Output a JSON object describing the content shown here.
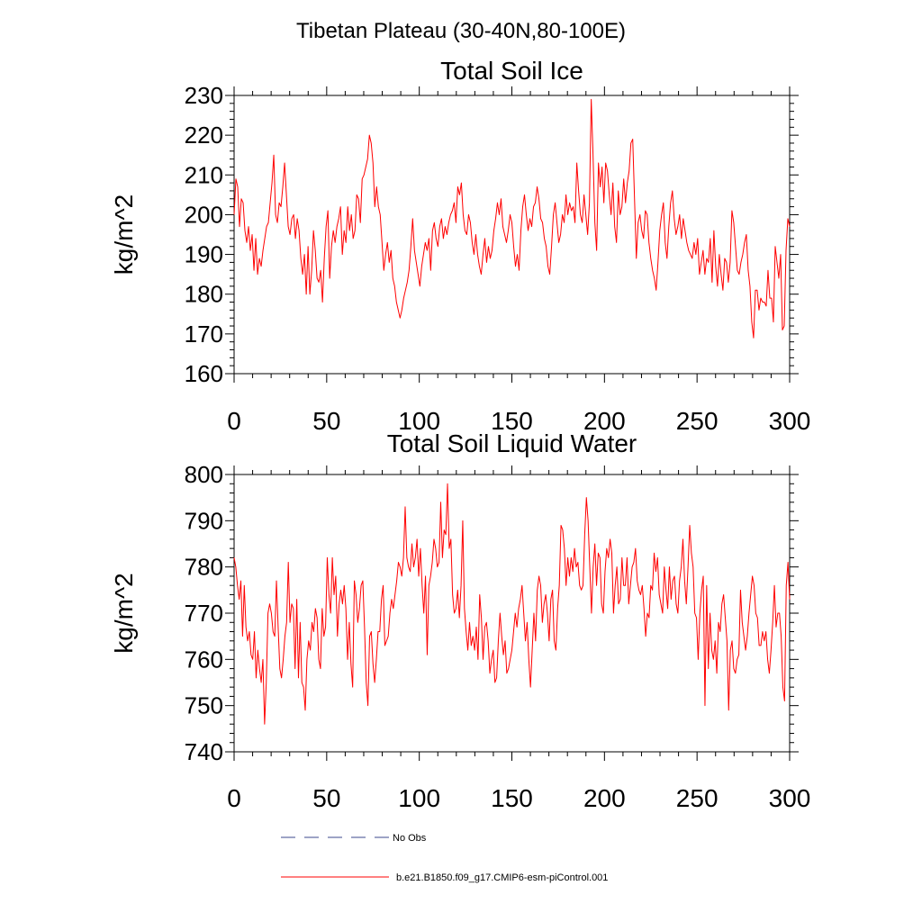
{
  "figure_title": "Tibetan Plateau (30-40N,80-100E)",
  "colors": {
    "model_line": "#ff0000",
    "obs_line": "#3b4a8c",
    "axis": "#000000"
  },
  "legend": [
    {
      "label": "No Obs",
      "style": "dashed",
      "color": "#3b4a8c"
    },
    {
      "label": "b.e21.B1850.f09_g17.CMIP6-esm-piControl.001",
      "style": "solid",
      "color": "#ff0000"
    }
  ],
  "chart_data": [
    {
      "type": "line",
      "title": "Total Soil Ice",
      "xlabel": "",
      "ylabel": "kg/m^2",
      "xlim": [
        0,
        300
      ],
      "ylim": [
        160,
        230
      ],
      "xticks": [
        0,
        50,
        100,
        150,
        200,
        250,
        300
      ],
      "xtick_labels": [
        "0",
        "50",
        "100",
        "150",
        "200",
        "250",
        "300"
      ],
      "yticks": [
        160,
        170,
        180,
        190,
        200,
        210,
        220,
        230
      ],
      "ytick_labels": [
        "160",
        "170",
        "180",
        "190",
        "200",
        "210",
        "220",
        "230"
      ],
      "series": [
        {
          "name": "b.e21.B1850.f09_g17.CMIP6-esm-piControl.001",
          "color": "#ff0000",
          "values": [
            200,
            209,
            207,
            197,
            204,
            203,
            196,
            193,
            197,
            191,
            195,
            186,
            194,
            185,
            189,
            187,
            191,
            194,
            197,
            198,
            203,
            208,
            215,
            200,
            198,
            203,
            202,
            207,
            213,
            205,
            197,
            195,
            199,
            200,
            194,
            199,
            196,
            189,
            185,
            190,
            180,
            192,
            180,
            186,
            196,
            191,
            184,
            183,
            186,
            178,
            189,
            197,
            201,
            184,
            192,
            196,
            193,
            197,
            199,
            202,
            190,
            196,
            193,
            202,
            196,
            200,
            194,
            196,
            205,
            204,
            198,
            209,
            210,
            212,
            214,
            220,
            218,
            213,
            202,
            207,
            202,
            200,
            193,
            186,
            190,
            193,
            188,
            191,
            184,
            182,
            178,
            176,
            174,
            176,
            179,
            181,
            183,
            186,
            192,
            199,
            191,
            188,
            185,
            182,
            187,
            190,
            193,
            191,
            194,
            186,
            196,
            198,
            194,
            192,
            197,
            199,
            194,
            197,
            195,
            198,
            200,
            201,
            203,
            198,
            207,
            205,
            208,
            200,
            196,
            195,
            200,
            198,
            193,
            190,
            195,
            190,
            187,
            185,
            190,
            194,
            188,
            192,
            189,
            191,
            196,
            199,
            203,
            200,
            204,
            197,
            195,
            193,
            196,
            200,
            198,
            192,
            187,
            190,
            186,
            196,
            202,
            205,
            200,
            196,
            199,
            197,
            202,
            203,
            207,
            204,
            199,
            198,
            194,
            192,
            187,
            185,
            192,
            200,
            203,
            198,
            193,
            195,
            200,
            198,
            205,
            200,
            203,
            201,
            202,
            198,
            213,
            206,
            200,
            198,
            205,
            200,
            195,
            203,
            229,
            215,
            198,
            191,
            213,
            207,
            212,
            203,
            213,
            211,
            205,
            200,
            208,
            197,
            193,
            206,
            200,
            202,
            209,
            203,
            208,
            211,
            218,
            219,
            204,
            189,
            198,
            200,
            196,
            194,
            201,
            200,
            193,
            189,
            186,
            184,
            181,
            188,
            196,
            200,
            203,
            193,
            189,
            197,
            203,
            206,
            199,
            195,
            197,
            200,
            194,
            199,
            196,
            193,
            191,
            190,
            189,
            193,
            190,
            194,
            185,
            188,
            191,
            185,
            189,
            188,
            194,
            183,
            196,
            187,
            182,
            190,
            185,
            181,
            189,
            188,
            183,
            188,
            201,
            198,
            192,
            186,
            185,
            188,
            190,
            193,
            195,
            186,
            182,
            173,
            169,
            181,
            181,
            176,
            179,
            178,
            178,
            177,
            186,
            179,
            179,
            173,
            192,
            188,
            184,
            190,
            171,
            172,
            191,
            199,
            197
          ]
        }
      ]
    },
    {
      "type": "line",
      "title": "Total Soil Liquid Water",
      "xlabel": "",
      "ylabel": "kg/m^2",
      "xlim": [
        0,
        300
      ],
      "ylim": [
        740,
        800
      ],
      "xticks": [
        0,
        50,
        100,
        150,
        200,
        250,
        300
      ],
      "xtick_labels": [
        "0",
        "50",
        "100",
        "150",
        "200",
        "250",
        "300"
      ],
      "yticks": [
        740,
        750,
        760,
        770,
        780,
        790,
        800
      ],
      "ytick_labels": [
        "740",
        "750",
        "760",
        "770",
        "780",
        "790",
        "800"
      ],
      "series": [
        {
          "name": "b.e21.B1850.f09_g17.CMIP6-esm-piControl.001",
          "color": "#ff0000",
          "values": [
            782,
            780,
            776,
            773,
            777,
            765,
            776,
            767,
            764,
            766,
            761,
            760,
            766,
            756,
            762,
            758,
            755,
            760,
            746,
            755,
            770,
            772,
            770,
            766,
            765,
            777,
            767,
            758,
            756,
            760,
            765,
            768,
            781,
            768,
            772,
            771,
            758,
            773,
            756,
            768,
            755,
            754,
            749,
            760,
            764,
            762,
            768,
            766,
            771,
            769,
            760,
            758,
            771,
            765,
            767,
            782,
            774,
            770,
            782,
            774,
            778,
            765,
            772,
            775,
            772,
            776,
            771,
            760,
            768,
            759,
            754,
            777,
            774,
            768,
            771,
            776,
            777,
            767,
            755,
            750,
            765,
            766,
            759,
            755,
            760,
            766,
            766,
            773,
            776,
            763,
            764,
            765,
            770,
            773,
            771,
            774,
            777,
            781,
            780,
            778,
            782,
            793,
            782,
            780,
            779,
            785,
            780,
            782,
            786,
            778,
            784,
            776,
            770,
            778,
            761,
            776,
            778,
            781,
            786,
            784,
            780,
            781,
            794,
            782,
            788,
            787,
            798,
            784,
            786,
            774,
            770,
            771,
            775,
            769,
            776,
            790,
            771,
            766,
            762,
            768,
            763,
            765,
            762,
            767,
            760,
            774,
            769,
            760,
            767,
            768,
            764,
            757,
            760,
            762,
            755,
            756,
            764,
            770,
            765,
            761,
            764,
            757,
            758,
            760,
            762,
            766,
            770,
            767,
            771,
            773,
            776,
            770,
            764,
            768,
            760,
            754,
            762,
            770,
            764,
            775,
            778,
            776,
            768,
            772,
            774,
            770,
            764,
            773,
            775,
            764,
            762,
            771,
            776,
            789,
            788,
            784,
            776,
            782,
            778,
            782,
            779,
            784,
            780,
            781,
            776,
            775,
            776,
            787,
            795,
            790,
            780,
            770,
            780,
            785,
            776,
            783,
            782,
            772,
            770,
            779,
            784,
            782,
            786,
            783,
            770,
            776,
            780,
            772,
            773,
            782,
            776,
            776,
            782,
            772,
            776,
            780,
            781,
            784,
            777,
            775,
            774,
            776,
            771,
            765,
            770,
            769,
            776,
            775,
            783,
            779,
            782,
            774,
            772,
            770,
            780,
            775,
            771,
            780,
            773,
            777,
            778,
            772,
            770,
            777,
            780,
            786,
            777,
            772,
            780,
            789,
            783,
            780,
            770,
            769,
            760,
            770,
            775,
            778,
            750,
            776,
            758,
            770,
            762,
            760,
            764,
            757,
            768,
            766,
            772,
            774,
            769,
            764,
            749,
            762,
            764,
            758,
            757,
            760,
            761,
            775,
            768,
            765,
            762,
            765,
            770,
            774,
            778,
            776,
            770,
            769,
            763,
            763,
            766,
            764,
            766,
            760,
            757,
            762,
            768,
            776,
            767,
            770,
            770,
            765,
            754,
            751,
            776,
            781,
            773
          ]
        }
      ]
    }
  ]
}
